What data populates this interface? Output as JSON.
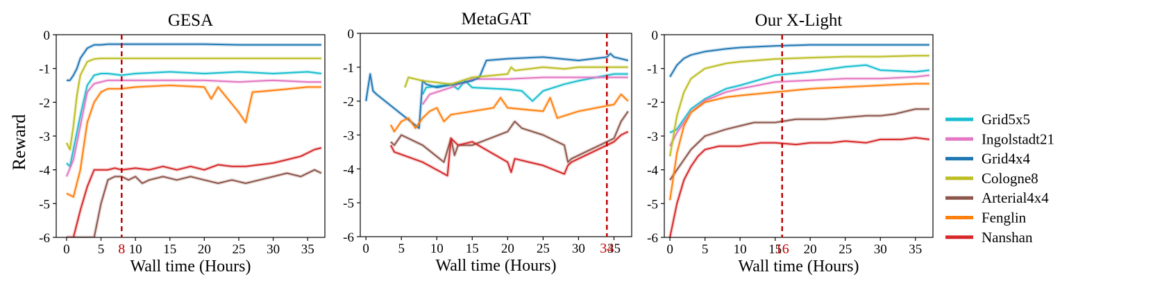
{
  "figure": {
    "shared_ylabel": "Reward",
    "legend": [
      {
        "name": "Grid5x5",
        "color": "#17becf"
      },
      {
        "name": "Ingolstadt21",
        "color": "#e377c2"
      },
      {
        "name": "Grid4x4",
        "color": "#1f77b4"
      },
      {
        "name": "Cologne8",
        "color": "#bcbd22"
      },
      {
        "name": "Arterial4x4",
        "color": "#8c564b"
      },
      {
        "name": "Fenglin",
        "color": "#ff7f0e"
      },
      {
        "name": "Nanshan",
        "color": "#d62728"
      }
    ],
    "marker_color": "#c00000"
  },
  "chart_data": [
    {
      "type": "line",
      "title": "GESA",
      "xlabel": "Wall time (Hours)",
      "ylabel": "Reward",
      "xlim": [
        -1.5,
        37.5
      ],
      "ylim": [
        -6,
        0
      ],
      "xticks": [
        0,
        5,
        10,
        15,
        20,
        25,
        30,
        35
      ],
      "yticks": [
        0,
        -1,
        -2,
        -3,
        -4,
        -5,
        -6
      ],
      "marker_x": 8,
      "marker_label": "8",
      "series": [
        {
          "name": "Grid5x5",
          "x": [
            0,
            0.5,
            1,
            2,
            3,
            4,
            5,
            6,
            8,
            10,
            15,
            20,
            25,
            30,
            35,
            37
          ],
          "y": [
            -3.8,
            -3.9,
            -3.4,
            -2.4,
            -1.5,
            -1.2,
            -1.15,
            -1.15,
            -1.2,
            -1.15,
            -1.1,
            -1.15,
            -1.1,
            -1.15,
            -1.1,
            -1.15
          ]
        },
        {
          "name": "Ingolstadt21",
          "x": [
            0,
            1,
            2,
            3,
            4,
            5,
            6,
            8,
            10,
            15,
            20,
            25,
            30,
            35,
            37
          ],
          "y": [
            -4.2,
            -3.7,
            -2.7,
            -1.7,
            -1.45,
            -1.4,
            -1.35,
            -1.35,
            -1.35,
            -1.35,
            -1.35,
            -1.4,
            -1.35,
            -1.4,
            -1.4
          ]
        },
        {
          "name": "Grid4x4",
          "x": [
            0,
            0.5,
            1,
            1.5,
            2,
            3,
            4,
            5,
            6,
            8,
            10,
            15,
            20,
            25,
            30,
            35,
            37
          ],
          "y": [
            -1.35,
            -1.35,
            -1.2,
            -1.0,
            -0.7,
            -0.4,
            -0.3,
            -0.3,
            -0.28,
            -0.28,
            -0.28,
            -0.28,
            -0.28,
            -0.3,
            -0.3,
            -0.3,
            -0.3
          ]
        },
        {
          "name": "Cologne8",
          "x": [
            0,
            0.5,
            1,
            1.5,
            2,
            3,
            4,
            5,
            8,
            10,
            15,
            20,
            25,
            30,
            35,
            37
          ],
          "y": [
            -3.2,
            -3.4,
            -2.7,
            -1.8,
            -1.2,
            -0.8,
            -0.72,
            -0.7,
            -0.7,
            -0.7,
            -0.7,
            -0.7,
            -0.7,
            -0.7,
            -0.7,
            -0.7
          ]
        },
        {
          "name": "Arterial4x4",
          "x": [
            0,
            2,
            3,
            4,
            5,
            6,
            7,
            8,
            9,
            10,
            11,
            12,
            14,
            16,
            18,
            20,
            22,
            24,
            26,
            28,
            30,
            32,
            34,
            36,
            37
          ],
          "y": [
            -6.0,
            -6.0,
            -6.0,
            -6.0,
            -5.0,
            -4.3,
            -4.2,
            -4.2,
            -4.3,
            -4.2,
            -4.4,
            -4.3,
            -4.2,
            -4.3,
            -4.2,
            -4.3,
            -4.4,
            -4.3,
            -4.4,
            -4.3,
            -4.2,
            -4.1,
            -4.2,
            -4.0,
            -4.1
          ]
        },
        {
          "name": "Fenglin",
          "x": [
            0,
            1,
            2,
            3,
            4,
            5,
            6,
            8,
            10,
            15,
            20,
            21,
            22,
            25,
            26,
            27,
            30,
            35,
            37
          ],
          "y": [
            -4.7,
            -4.8,
            -4.0,
            -2.6,
            -2.0,
            -1.7,
            -1.6,
            -1.6,
            -1.55,
            -1.5,
            -1.55,
            -1.9,
            -1.55,
            -2.3,
            -2.6,
            -1.7,
            -1.65,
            -1.55,
            -1.55
          ]
        },
        {
          "name": "Nanshan",
          "x": [
            0,
            1,
            2,
            3,
            4,
            5,
            6,
            7,
            8,
            10,
            12,
            14,
            16,
            18,
            20,
            22,
            24,
            26,
            28,
            30,
            32,
            34,
            36,
            37
          ],
          "y": [
            -6.0,
            -6.0,
            -5.2,
            -4.5,
            -4.0,
            -4.0,
            -4.0,
            -3.95,
            -4.0,
            -3.95,
            -4.0,
            -3.9,
            -4.0,
            -3.9,
            -4.0,
            -3.85,
            -3.9,
            -3.9,
            -3.85,
            -3.8,
            -3.7,
            -3.6,
            -3.4,
            -3.35
          ]
        }
      ]
    },
    {
      "type": "line",
      "title": "MetaGAT",
      "xlabel": "Wall time (Hours)",
      "ylabel": "",
      "xlim": [
        -0.8,
        37.5
      ],
      "ylim": [
        -6,
        0
      ],
      "xticks": [
        0,
        5,
        10,
        15,
        20,
        25,
        30,
        35
      ],
      "yticks": [
        0,
        -1,
        -2,
        -3,
        -4,
        -5,
        -6
      ],
      "marker_x": 34,
      "marker_label": "34",
      "series": [
        {
          "name": "Grid5x5",
          "x": [
            8,
            8.5,
            12,
            13,
            14,
            15,
            20,
            22,
            23.5,
            25,
            28,
            30,
            35,
            37
          ],
          "y": [
            -1.8,
            -1.6,
            -1.5,
            -1.65,
            -1.4,
            -1.6,
            -1.65,
            -1.7,
            -2.0,
            -1.7,
            -1.5,
            -1.4,
            -1.2,
            -1.2
          ]
        },
        {
          "name": "Ingolstadt21",
          "x": [
            8,
            9,
            12,
            13,
            14,
            15,
            20,
            25,
            30,
            35,
            37
          ],
          "y": [
            -2.1,
            -1.8,
            -1.6,
            -1.5,
            -1.45,
            -1.35,
            -1.35,
            -1.3,
            -1.3,
            -1.3,
            -1.3
          ]
        },
        {
          "name": "Grid4x4",
          "x": [
            0,
            0.3,
            0.6,
            1,
            1.5,
            7.5,
            8,
            8.5,
            10,
            15,
            16,
            17,
            20,
            25,
            30,
            34,
            34.5,
            35,
            37
          ],
          "y": [
            -2.0,
            -1.6,
            -1.2,
            -1.7,
            -1.8,
            -2.8,
            -1.4,
            -1.5,
            -1.6,
            -1.4,
            -1.3,
            -0.8,
            -0.75,
            -0.7,
            -0.8,
            -0.7,
            -0.6,
            -0.7,
            -0.8
          ]
        },
        {
          "name": "Cologne8",
          "x": [
            5.5,
            6,
            8,
            10,
            12,
            15,
            20,
            20.5,
            21,
            25,
            28,
            30,
            35,
            37
          ],
          "y": [
            -1.6,
            -1.3,
            -1.4,
            -1.45,
            -1.5,
            -1.3,
            -1.2,
            -1.0,
            -1.1,
            -1.0,
            -1.05,
            -1.0,
            -1.0,
            -1.0
          ]
        },
        {
          "name": "Arterial4x4",
          "x": [
            3.5,
            4,
            5,
            8,
            11,
            12,
            12.5,
            13,
            15,
            20,
            21,
            22,
            25,
            28,
            28.5,
            29,
            30,
            35,
            36,
            37
          ],
          "y": [
            -3.2,
            -3.3,
            -3.0,
            -3.3,
            -3.8,
            -3.1,
            -3.6,
            -3.3,
            -3.3,
            -2.9,
            -2.6,
            -2.8,
            -3.0,
            -3.3,
            -3.8,
            -3.7,
            -3.6,
            -3.1,
            -2.6,
            -2.3
          ]
        },
        {
          "name": "Fenglin",
          "x": [
            3.5,
            4,
            5,
            6,
            7,
            8,
            9,
            10,
            11,
            12,
            15,
            18,
            19,
            20,
            25,
            26,
            27,
            30,
            35,
            36,
            37
          ],
          "y": [
            -2.7,
            -2.9,
            -2.6,
            -2.5,
            -2.8,
            -2.5,
            -2.3,
            -2.2,
            -2.6,
            -2.4,
            -2.3,
            -2.2,
            -1.9,
            -2.2,
            -2.3,
            -1.9,
            -2.5,
            -2.3,
            -2.1,
            -1.8,
            -2.0
          ]
        },
        {
          "name": "Nanshan",
          "x": [
            3.5,
            4,
            8,
            11.5,
            12,
            13,
            15,
            20,
            20.5,
            21,
            25,
            28,
            28.5,
            29,
            30,
            35,
            36,
            37
          ],
          "y": [
            -3.3,
            -3.5,
            -3.8,
            -4.2,
            -3.1,
            -3.3,
            -3.2,
            -3.8,
            -4.1,
            -3.7,
            -3.9,
            -4.15,
            -3.9,
            -3.8,
            -3.7,
            -3.2,
            -3.0,
            -2.9
          ]
        }
      ]
    },
    {
      "type": "line",
      "title": "Our X-Light",
      "xlabel": "Wall time (Hours)",
      "ylabel": "",
      "xlim": [
        -0.8,
        37.5
      ],
      "ylim": [
        -6,
        0
      ],
      "xticks": [
        0,
        5,
        10,
        15,
        20,
        25,
        30,
        35
      ],
      "yticks": [
        0,
        -1,
        -2,
        -3,
        -4,
        -5,
        -6
      ],
      "marker_x": 16,
      "marker_label": "16",
      "series": [
        {
          "name": "Grid5x5",
          "x": [
            0,
            1,
            2,
            3,
            5,
            8,
            10,
            15,
            20,
            25,
            28,
            30,
            35,
            37
          ],
          "y": [
            -2.9,
            -2.8,
            -2.5,
            -2.2,
            -1.9,
            -1.6,
            -1.5,
            -1.2,
            -1.1,
            -0.95,
            -0.9,
            -1.05,
            -1.1,
            -1.05
          ]
        },
        {
          "name": "Ingolstadt21",
          "x": [
            0,
            1,
            2,
            3,
            5,
            8,
            10,
            15,
            20,
            25,
            30,
            35,
            37
          ],
          "y": [
            -3.3,
            -2.9,
            -2.6,
            -2.3,
            -1.95,
            -1.7,
            -1.6,
            -1.4,
            -1.35,
            -1.3,
            -1.3,
            -1.25,
            -1.2
          ]
        },
        {
          "name": "Grid4x4",
          "x": [
            0,
            1,
            2,
            3,
            5,
            8,
            10,
            15,
            20,
            25,
            30,
            35,
            37
          ],
          "y": [
            -1.25,
            -0.9,
            -0.7,
            -0.6,
            -0.5,
            -0.42,
            -0.38,
            -0.33,
            -0.3,
            -0.3,
            -0.3,
            -0.3,
            -0.3
          ]
        },
        {
          "name": "Cologne8",
          "x": [
            0,
            1,
            2,
            3,
            5,
            8,
            10,
            15,
            20,
            25,
            30,
            35,
            37
          ],
          "y": [
            -3.6,
            -2.4,
            -1.7,
            -1.3,
            -1.0,
            -0.85,
            -0.8,
            -0.72,
            -0.68,
            -0.65,
            -0.65,
            -0.62,
            -0.62
          ]
        },
        {
          "name": "Arterial4x4",
          "x": [
            0,
            1,
            2,
            3,
            5,
            8,
            10,
            12,
            15,
            18,
            20,
            22,
            25,
            28,
            30,
            32,
            35,
            37
          ],
          "y": [
            -4.3,
            -4.0,
            -3.7,
            -3.4,
            -3.0,
            -2.8,
            -2.7,
            -2.6,
            -2.6,
            -2.5,
            -2.5,
            -2.5,
            -2.45,
            -2.4,
            -2.4,
            -2.35,
            -2.2,
            -2.2
          ]
        },
        {
          "name": "Fenglin",
          "x": [
            0,
            1,
            2,
            3,
            5,
            8,
            10,
            15,
            20,
            25,
            30,
            35,
            37
          ],
          "y": [
            -4.9,
            -3.5,
            -2.7,
            -2.3,
            -2.0,
            -1.85,
            -1.8,
            -1.7,
            -1.6,
            -1.55,
            -1.5,
            -1.45,
            -1.45
          ]
        },
        {
          "name": "Nanshan",
          "x": [
            0,
            1,
            2,
            3,
            4,
            5,
            7,
            10,
            13,
            15,
            18,
            20,
            23,
            25,
            28,
            30,
            33,
            35,
            37
          ],
          "y": [
            -6.0,
            -5.0,
            -4.3,
            -3.9,
            -3.6,
            -3.4,
            -3.3,
            -3.3,
            -3.2,
            -3.2,
            -3.25,
            -3.2,
            -3.2,
            -3.15,
            -3.2,
            -3.1,
            -3.1,
            -3.05,
            -3.1
          ]
        }
      ]
    }
  ]
}
